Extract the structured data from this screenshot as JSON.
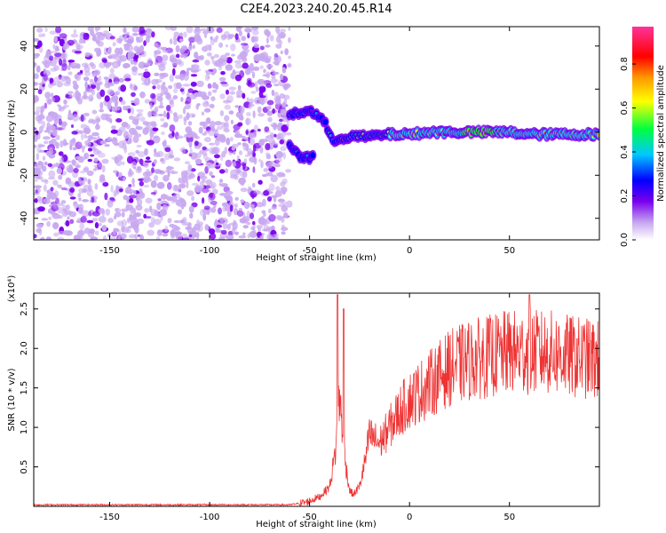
{
  "title": "C2E4.2023.240.20.45.R14",
  "chart_data": [
    {
      "type": "heatmap",
      "xlabel": "Height of straight line (km)",
      "ylabel": "Frequency (Hz)",
      "xlim": [
        -188,
        95
      ],
      "ylim": [
        -50,
        49
      ],
      "xticks": [
        -150,
        -100,
        -50,
        0,
        50
      ],
      "yticks": [
        -40,
        -20,
        0,
        20,
        40
      ],
      "colorbar": {
        "label": "Normalized spectral amplitude",
        "range": [
          0,
          0.97
        ],
        "ticks": [
          0.0,
          0.2,
          0.4,
          0.6,
          0.8
        ],
        "colormap": [
          "#ffffff",
          "#c8a8f0",
          "#7a00ee",
          "#0000ff",
          "#00c8ff",
          "#00ff40",
          "#ffff00",
          "#ff9900",
          "#ff0000",
          "#ff3399"
        ]
      },
      "noise_region": {
        "x": [
          -188,
          -60
        ],
        "y": [
          -50,
          49
        ],
        "amplitude": 0.2
      },
      "signal_track": {
        "x": [
          -60,
          -55,
          -50,
          -46,
          -42,
          -40,
          -38,
          -35,
          -30,
          -20,
          -10,
          0,
          10,
          20,
          30,
          40,
          50,
          60,
          70,
          80,
          95
        ],
        "y": [
          8,
          9,
          10,
          8,
          4,
          -2,
          -4,
          -3,
          -2,
          -2,
          -1,
          -1,
          0,
          0,
          0,
          0,
          0,
          -1,
          -1,
          -1,
          -1
        ],
        "amplitude": [
          0.35,
          0.4,
          0.35,
          0.3,
          0.35,
          0.4,
          0.45,
          0.5,
          0.55,
          0.6,
          0.65,
          0.7,
          0.75,
          0.8,
          0.85,
          0.85,
          0.8,
          0.8,
          0.75,
          0.75,
          0.7
        ]
      },
      "secondary_track": {
        "x": [
          -60,
          -55,
          -50,
          -48
        ],
        "y": [
          -6,
          -11,
          -12,
          -10
        ],
        "amplitude": 0.35
      }
    },
    {
      "type": "line",
      "xlabel": "Height of straight line (km)",
      "ylabel": "SNR (10 * v/v)",
      "y_multiplier": "(x10⁴)",
      "xlim": [
        -188,
        95
      ],
      "ylim": [
        0,
        2.7
      ],
      "xticks": [
        -150,
        -100,
        -50,
        0,
        50
      ],
      "yticks": [
        0.5,
        1.0,
        1.5,
        2.0,
        2.5
      ],
      "series": [
        {
          "color": "#ee3333",
          "envelope_x": [
            -188,
            -60,
            -52,
            -45,
            -40,
            -37,
            -35,
            -32,
            -30,
            -28,
            -25,
            -22,
            -20,
            -15,
            -10,
            -5,
            0,
            10,
            20,
            30,
            40,
            50,
            60,
            70,
            80,
            95
          ],
          "envelope_y": [
            0.02,
            0.02,
            0.05,
            0.12,
            0.25,
            0.7,
            1.4,
            0.55,
            0.2,
            0.15,
            0.25,
            0.6,
            0.9,
            0.8,
            1.0,
            1.2,
            1.35,
            1.55,
            1.75,
            1.85,
            1.9,
            1.95,
            1.95,
            1.95,
            1.9,
            1.85
          ],
          "peaks": [
            {
              "x": -36,
              "y": 2.68
            },
            {
              "x": -33,
              "y": 2.5
            },
            {
              "x": 60,
              "y": 2.68
            }
          ]
        }
      ]
    }
  ]
}
